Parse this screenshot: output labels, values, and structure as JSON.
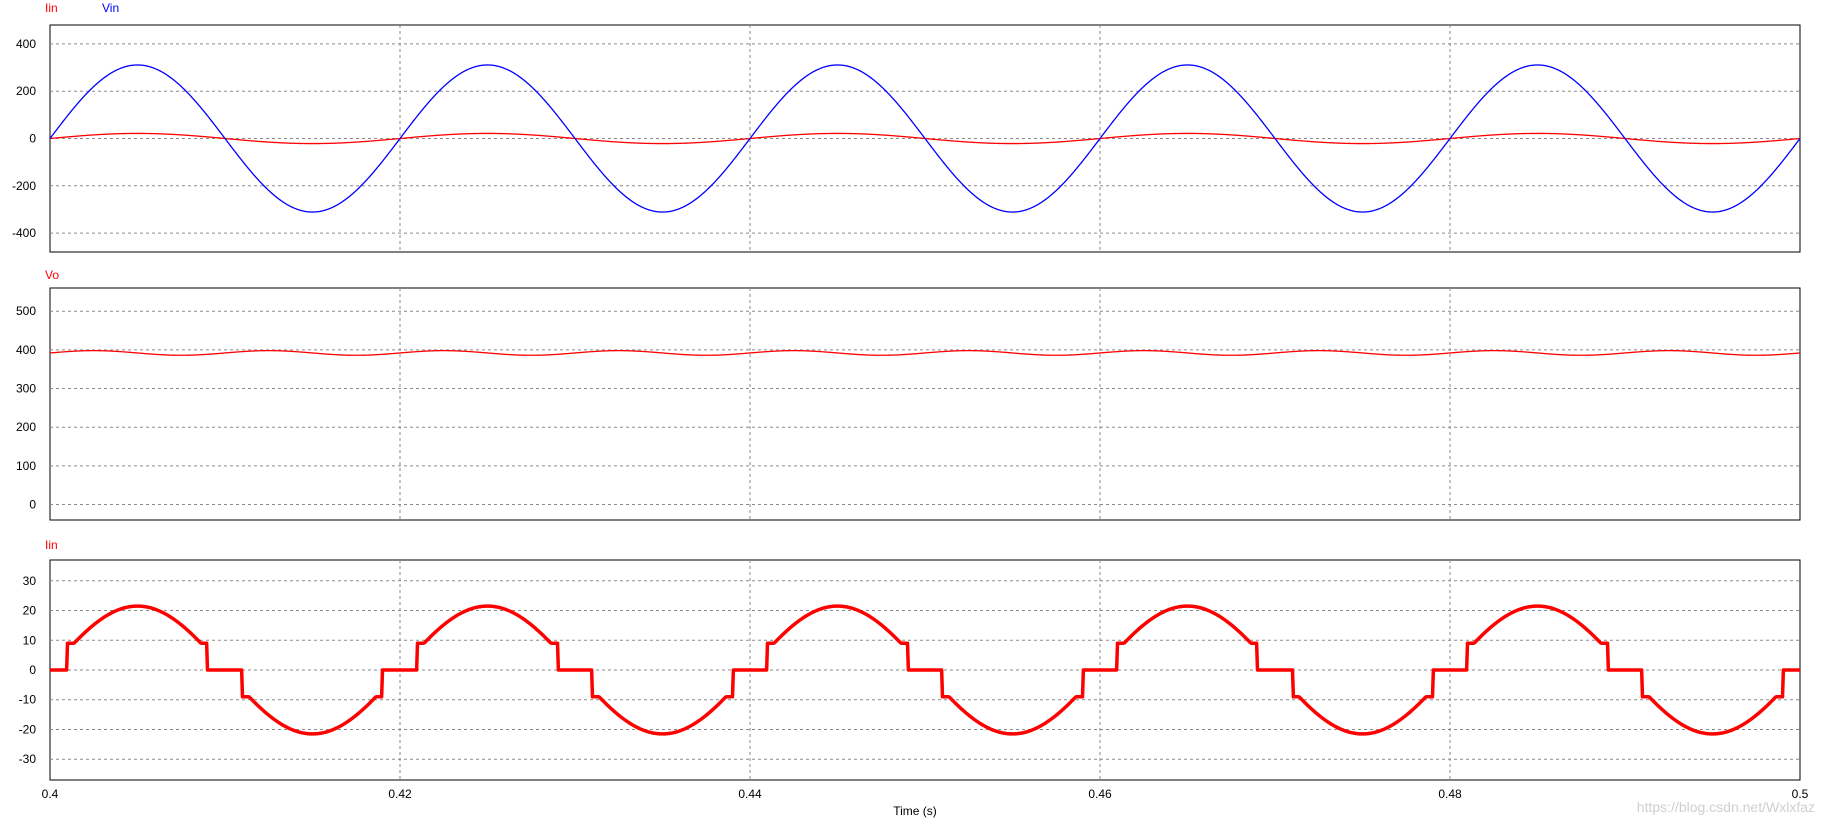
{
  "colors": {
    "red": "#ff0000",
    "blue": "#0000ff",
    "grid": "#8a8a8a",
    "frame": "#000000"
  },
  "watermark": "https://blog.csdn.net/Wxlxfaz",
  "chart_data": [
    {
      "type": "line",
      "title": "",
      "legend_placement": "top-left",
      "legend": [
        "Iin",
        "Vin"
      ],
      "xlabel": "",
      "ylabel": "",
      "xlim": [
        0.4,
        0.5
      ],
      "ylim": [
        -480,
        480
      ],
      "yticks": [
        -400,
        -200,
        0,
        200,
        400
      ],
      "grid": true,
      "series": [
        {
          "name": "Iin",
          "color": "#ff0000",
          "shape": "sine",
          "amplitude": 21.5,
          "frequency_hz": 50,
          "phase": 0,
          "offset": 0
        },
        {
          "name": "Vin",
          "color": "#0000ff",
          "shape": "sine",
          "amplitude": 311,
          "frequency_hz": 50,
          "phase": 0,
          "offset": 0
        }
      ]
    },
    {
      "type": "line",
      "title": "",
      "legend_placement": "top-left",
      "legend": [
        "Vo"
      ],
      "xlabel": "",
      "ylabel": "",
      "xlim": [
        0.4,
        0.5
      ],
      "ylim": [
        -40,
        560
      ],
      "yticks": [
        0,
        100,
        200,
        300,
        400,
        500
      ],
      "grid": true,
      "series": [
        {
          "name": "Vo",
          "color": "#ff0000",
          "shape": "ripple",
          "offset": 392,
          "amplitude": 6,
          "frequency_hz": 100,
          "phase": 0
        }
      ]
    },
    {
      "type": "line",
      "title": "",
      "legend_placement": "top-left",
      "legend": [
        "Iin"
      ],
      "xlabel": "Time (s)",
      "ylabel": "",
      "xlim": [
        0.4,
        0.5
      ],
      "ylim": [
        -37,
        37
      ],
      "yticks": [
        -30,
        -20,
        -10,
        0,
        10,
        20,
        30
      ],
      "xticks": [
        0.4,
        0.42,
        0.44,
        0.46,
        0.48,
        0.5
      ],
      "xtick_labels": [
        "0.4",
        "0.42",
        "0.44",
        "0.46",
        "0.48",
        "0.5"
      ],
      "grid": true,
      "series": [
        {
          "name": "Iin",
          "color": "#ff0000",
          "shape": "clipped-sine",
          "amplitude": 21.5,
          "frequency_hz": 50,
          "phase": 0,
          "dead_band_fraction": 0.05,
          "step_value": 9,
          "ripple_band": 1
        }
      ]
    }
  ]
}
